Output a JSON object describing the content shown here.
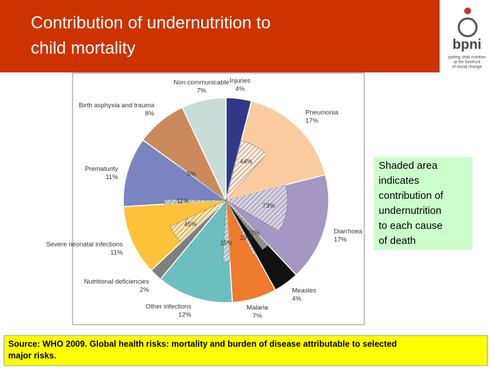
{
  "header": {
    "title_lines": [
      "Contribution of undernutrition to",
      "child mortality"
    ]
  },
  "logo": {
    "name": "bpni",
    "tagline_lines": [
      "putting child nutrition",
      "at the forefront",
      "of social change"
    ]
  },
  "note": {
    "lines": [
      "Shaded area",
      "indicates",
      "contribution of",
      "undernutrition",
      "to each cause",
      "of death"
    ]
  },
  "source": {
    "lines": [
      "Source: WHO 2009. Global health risks: mortality and  burden of disease attributable to selected",
      "major risks."
    ]
  },
  "chart_data": {
    "type": "pie",
    "categories": [
      "Injuries",
      "Pneumonia",
      "Diarrhoea",
      "Measles",
      "Malaria",
      "Other infections",
      "Nutritional deficiencies",
      "Severe neonatal infections",
      "Prematurity",
      "Birth asphyxia and trauma",
      "Non communicable"
    ],
    "values": [
      4,
      17,
      17,
      4,
      7,
      12,
      2,
      11,
      11,
      8,
      7
    ],
    "value_labels": [
      "4%",
      "17%",
      "17%",
      "4%",
      "7%",
      "12%",
      "2%",
      "11%",
      "11%",
      "8%",
      "7%"
    ],
    "colors": [
      "#2e3a87",
      "#fbcba0",
      "#a597c4",
      "#111111",
      "#ee7b2e",
      "#6dbfbf",
      "#7f7f7f",
      "#fcc33a",
      "#7a84c0",
      "#cc8a5c",
      "#c8dcd8"
    ],
    "shaded_values": [
      null,
      44,
      73,
      47,
      10,
      15,
      null,
      45,
      11,
      5,
      null
    ],
    "shaded_labels": [
      null,
      "44%",
      "73%",
      "47%",
      "10%",
      "15%",
      null,
      "45%",
      "11%",
      "5%",
      null
    ]
  }
}
